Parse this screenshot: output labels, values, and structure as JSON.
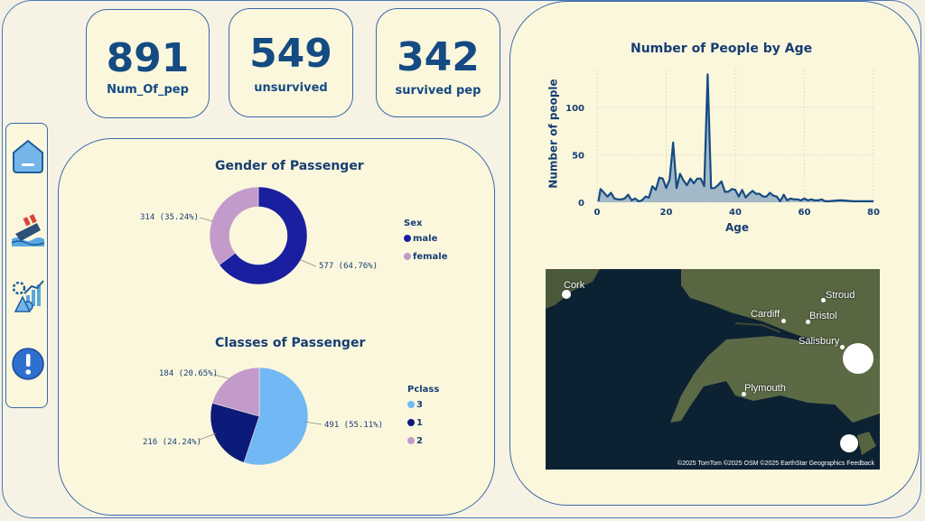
{
  "kpis": [
    {
      "value": "891",
      "label": "Num_Of_pep"
    },
    {
      "value": "549",
      "label": "unsurvived"
    },
    {
      "value": "342",
      "label": "survived pep"
    }
  ],
  "nav": [
    {
      "icon": "home-icon"
    },
    {
      "icon": "sinking-ship-icon"
    },
    {
      "icon": "analytics-icon"
    },
    {
      "icon": "info-icon"
    }
  ],
  "colors": {
    "navy": "#154b83",
    "male": "#1a1fa0",
    "female": "#c29bcb",
    "class3": "#72b8f4",
    "class1": "#0c1a7a",
    "class2": "#c29bcb",
    "area_fill": "#94aec3",
    "area_line": "#154b83"
  },
  "chart_data": [
    {
      "type": "pie",
      "variant": "donut",
      "title": "Gender of Passenger",
      "legend_title": "Sex",
      "legend_placement": "right",
      "slices": [
        {
          "label": "male",
          "value": 577,
          "percent": "64.76%",
          "data_label": "577 (64.76%)"
        },
        {
          "label": "female",
          "value": 314,
          "percent": "35.24%",
          "data_label": "314 (35.24%)"
        }
      ]
    },
    {
      "type": "pie",
      "title": "Classes of Passenger",
      "legend_title": "Pclass",
      "legend_placement": "right",
      "slices": [
        {
          "label": "3",
          "value": 491,
          "percent": "55.11%",
          "data_label": "491 (55.11%)"
        },
        {
          "label": "1",
          "value": 216,
          "percent": "24.24%",
          "data_label": "216 (24.24%)"
        },
        {
          "label": "2",
          "value": 184,
          "percent": "20.65%",
          "data_label": "184 (20.65%)"
        }
      ]
    },
    {
      "type": "area",
      "title": "Number of People by Age",
      "xlabel": "Age",
      "ylabel": "Number of people",
      "xlim": [
        0,
        80
      ],
      "ylim": [
        0,
        140
      ],
      "xticks": [
        "0",
        "20",
        "40",
        "60",
        "80"
      ],
      "yticks": [
        "0",
        "50",
        "100"
      ],
      "grid": true,
      "x": [
        0.4,
        1,
        2,
        3,
        4,
        5,
        6,
        7,
        8,
        9,
        10,
        11,
        12,
        13,
        14,
        15,
        16,
        17,
        18,
        19,
        20,
        21,
        22,
        23,
        24,
        25,
        26,
        27,
        28,
        29,
        30,
        31,
        32,
        33,
        34,
        35,
        36,
        37,
        38,
        39,
        40,
        41,
        42,
        43,
        44,
        45,
        46,
        47,
        48,
        49,
        50,
        51,
        52,
        53,
        54,
        55,
        56,
        57,
        58,
        59,
        60,
        61,
        62,
        63,
        64,
        65,
        66,
        67,
        70,
        71,
        74,
        80
      ],
      "y": [
        1,
        14,
        10,
        6,
        10,
        4,
        3,
        3,
        4,
        8,
        2,
        4,
        1,
        2,
        6,
        5,
        17,
        13,
        26,
        25,
        15,
        24,
        63,
        15,
        30,
        23,
        18,
        25,
        20,
        25,
        25,
        17,
        135,
        15,
        15,
        18,
        22,
        11,
        11,
        14,
        13,
        6,
        13,
        5,
        9,
        12,
        9,
        9,
        6,
        6,
        10,
        7,
        6,
        1,
        8,
        2,
        4,
        3,
        3,
        2,
        4,
        2,
        3,
        2,
        2,
        3,
        1,
        1,
        2,
        2,
        1,
        1
      ]
    }
  ],
  "map": {
    "places": [
      "Cork",
      "Cardiff",
      "Bristol",
      "Stroud",
      "Salisbury",
      "Plymouth"
    ],
    "attribution": "©2025 TomTom  ©2025 OSM  ©2025 EarthStar Geographics  Feedback"
  }
}
